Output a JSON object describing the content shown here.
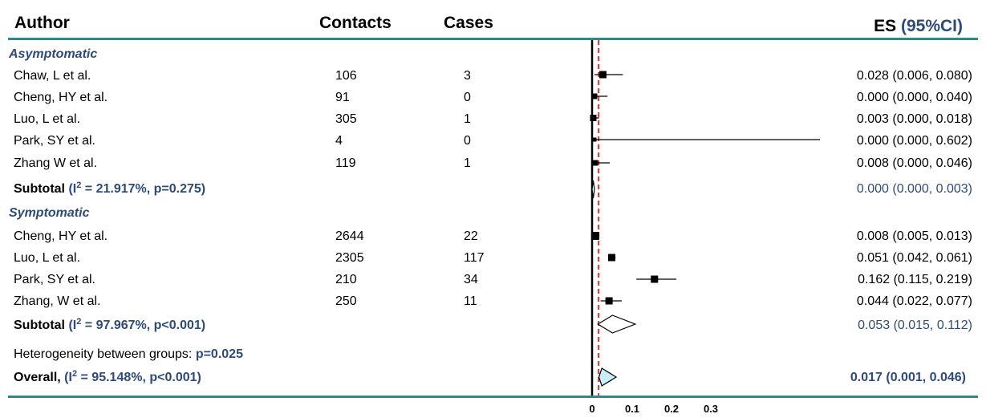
{
  "headers": {
    "author": "Author",
    "contacts": "Contacts",
    "cases": "Cases",
    "es_prefix": "ES ",
    "es_ci": "(95%CI)"
  },
  "colors": {
    "teal": "#2b8a8a",
    "navy": "#2e4a7a",
    "red": "#e03030",
    "diamond_fill": "#c9eef5"
  },
  "chart_data": {
    "type": "forest",
    "xlim": [
      0,
      0.3
    ],
    "ticks": [
      "0",
      "0.1",
      "0.2",
      "0.3"
    ],
    "reference_line": 0.017,
    "groups": [
      {
        "label": "Asymptomatic",
        "studies": [
          {
            "author": "Chaw, L et al.",
            "contacts": "106",
            "cases": "3",
            "es": 0.028,
            "lo": 0.006,
            "hi": 0.08,
            "es_text": "0.028 (0.006, 0.080)"
          },
          {
            "author": "Cheng, HY et al.",
            "contacts": "91",
            "cases": "0",
            "es": 0.0,
            "lo": 0.0,
            "hi": 0.04,
            "es_text": "0.000 (0.000, 0.040)"
          },
          {
            "author": "Luo, L et al.",
            "contacts": "305",
            "cases": "1",
            "es": 0.003,
            "lo": 0.0,
            "hi": 0.018,
            "es_text": "0.003 (0.000, 0.018)"
          },
          {
            "author": "Park, SY et al.",
            "contacts": "4",
            "cases": "0",
            "es": 0.0,
            "lo": 0.0,
            "hi": 0.602,
            "es_text": "0.000 (0.000, 0.602)"
          },
          {
            "author": "Zhang W et al.",
            "contacts": "119",
            "cases": "1",
            "es": 0.008,
            "lo": 0.0,
            "hi": 0.046,
            "es_text": "0.008 (0.000, 0.046)"
          }
        ],
        "subtotal": {
          "label": "Subtotal ",
          "stat_open": "(I",
          "stat_sup": "2",
          "stat_rest": " = 21.917%, p=0.275)",
          "es": 0.0,
          "lo": 0.0,
          "hi": 0.003,
          "es_text": "0.000 (0.000, 0.003)"
        }
      },
      {
        "label": "Symptomatic",
        "studies": [
          {
            "author": "Cheng, HY et al.",
            "contacts": "2644",
            "cases": "22",
            "es": 0.008,
            "lo": 0.005,
            "hi": 0.013,
            "es_text": "0.008 (0.005, 0.013)"
          },
          {
            "author": "Luo, L et al.",
            "contacts": "2305",
            "cases": "117",
            "es": 0.051,
            "lo": 0.042,
            "hi": 0.061,
            "es_text": "0.051 (0.042, 0.061)"
          },
          {
            "author": "Park, SY et al.",
            "contacts": "210",
            "cases": "34",
            "es": 0.162,
            "lo": 0.115,
            "hi": 0.219,
            "es_text": "0.162 (0.115, 0.219)"
          },
          {
            "author": "Zhang, W et al.",
            "contacts": "250",
            "cases": "11",
            "es": 0.044,
            "lo": 0.022,
            "hi": 0.077,
            "es_text": "0.044 (0.022, 0.077)"
          }
        ],
        "subtotal": {
          "label": "Subtotal ",
          "stat_open": "(I",
          "stat_sup": "2",
          "stat_rest": " = 97.967%, p<0.001)",
          "es": 0.053,
          "lo": 0.015,
          "hi": 0.112,
          "es_text": "0.053 (0.015, 0.112)"
        }
      }
    ],
    "heterogeneity": {
      "label": "Heterogeneity between groups: ",
      "value": "p=0.025"
    },
    "overall": {
      "label": "Overall, ",
      "stat_open": "(I",
      "stat_sup": "2",
      "stat_rest": " = 95.148%, p<0.001)",
      "es": 0.017,
      "lo": 0.001,
      "hi": 0.046,
      "es_text": "0.017 (0.001, 0.046)"
    }
  }
}
